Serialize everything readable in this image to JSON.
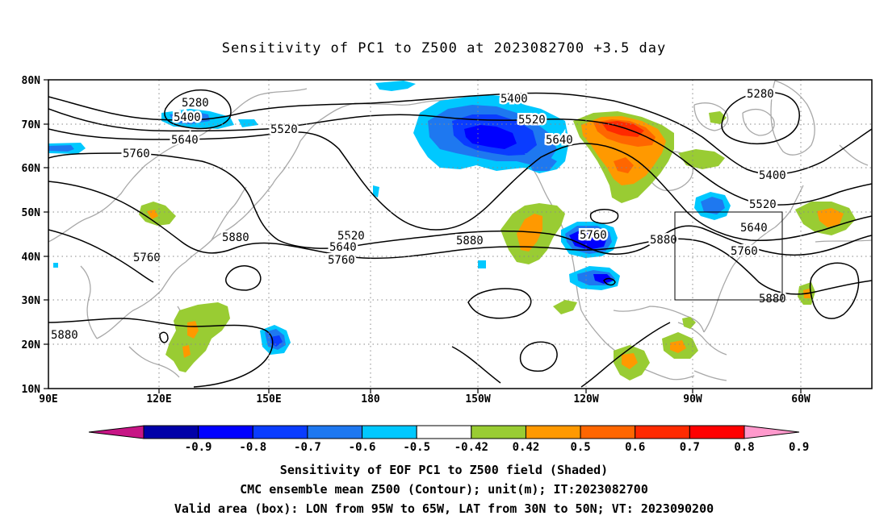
{
  "title": "Sensitivity of PC1 to Z500 at 2023082700 +3.5 day",
  "lat_ticks": [
    "80N",
    "70N",
    "60N",
    "50N",
    "40N",
    "30N",
    "20N",
    "10N"
  ],
  "lon_ticks": [
    "90E",
    "120E",
    "150E",
    "180",
    "150W",
    "120W",
    "90W",
    "60W"
  ],
  "contour_labels": [
    "5280",
    "5400",
    "5520",
    "5640",
    "5760",
    "5880",
    "5520",
    "5640",
    "5760",
    "5400",
    "5520",
    "5640",
    "5760",
    "5880",
    "5760",
    "5880",
    "5280",
    "5400",
    "5520",
    "5640",
    "5760",
    "5880",
    "5880"
  ],
  "colorbar": {
    "labels": [
      "-0.9",
      "-0.8",
      "-0.7",
      "-0.6",
      "-0.5",
      "-0.42",
      "0.42",
      "0.5",
      "0.6",
      "0.7",
      "0.8",
      "0.9"
    ],
    "colors": [
      "#c71585",
      "#0000a8",
      "#0000ff",
      "#0a3cff",
      "#1e78f0",
      "#00c8ff",
      "#ffffff",
      "#99cc33",
      "#ff9900",
      "#ff6600",
      "#ff2a00",
      "#ff0000",
      "#ff99cc"
    ]
  },
  "captions": [
    "Sensitivity of EOF PC1 to Z500 field (Shaded)",
    "CMC ensemble mean Z500 (Contour); unit(m); IT:2023082700",
    "Valid area (box): LON from 95W to 65W, LAT from 30N to 50N; VT: 2023090200"
  ]
}
